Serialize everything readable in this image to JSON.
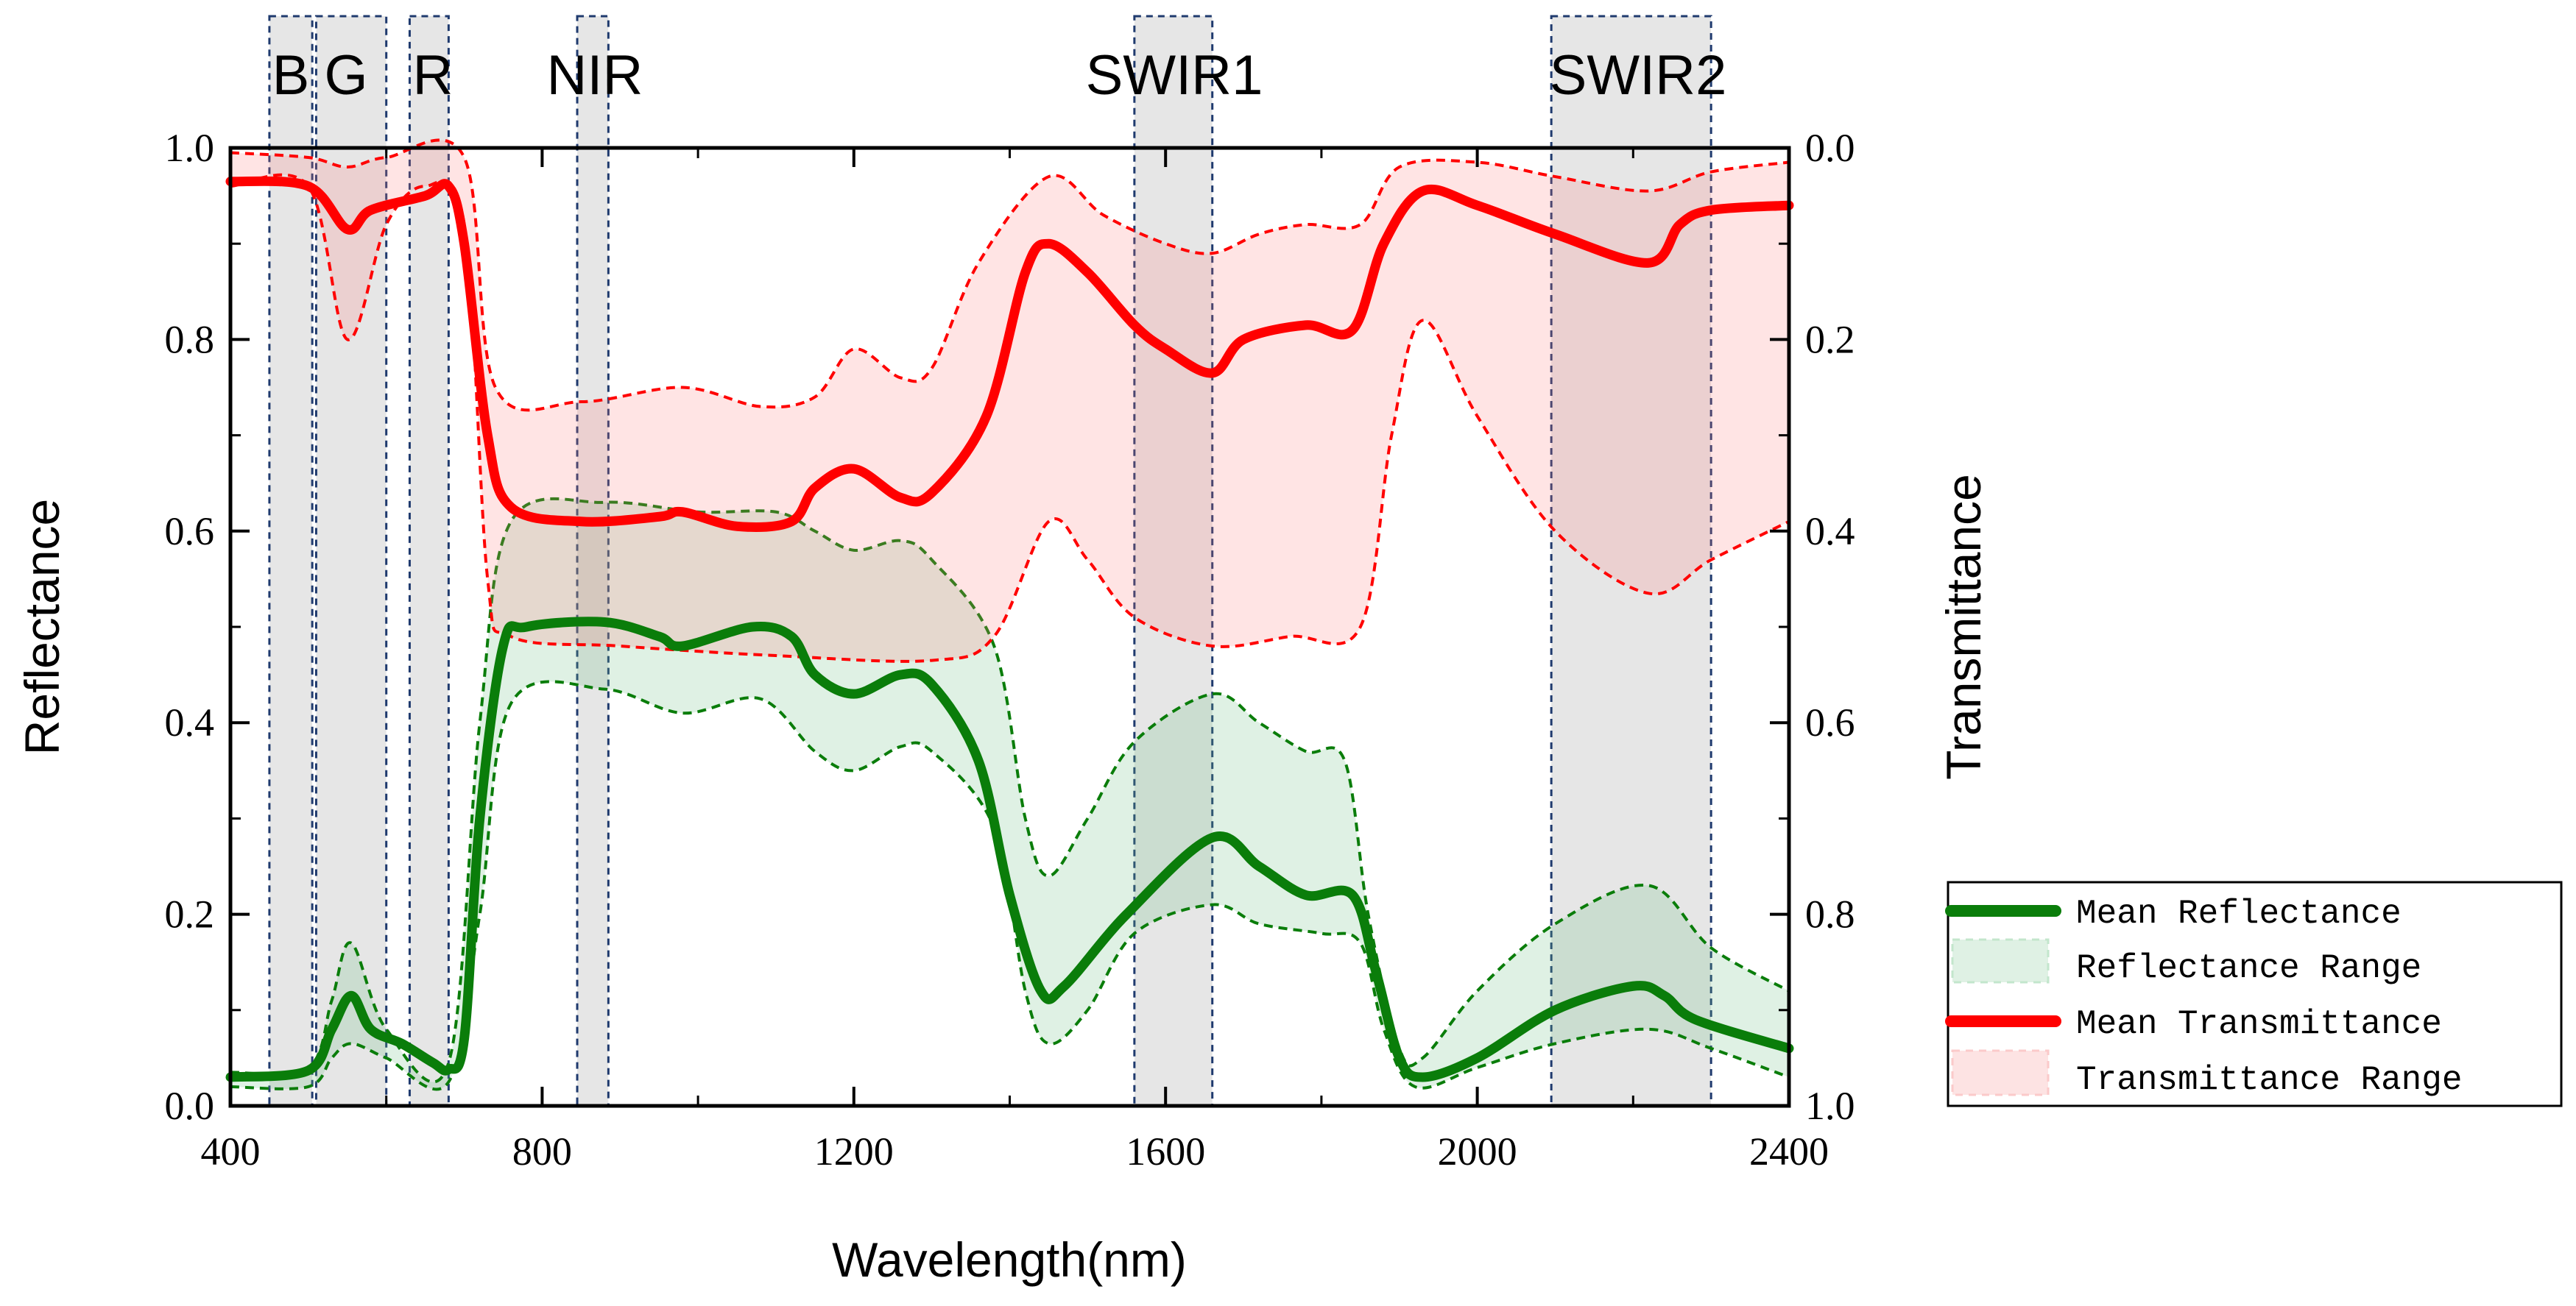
{
  "chart_data": {
    "type": "line",
    "xlabel": "Wavelength(nm)",
    "ylabel": "Reflectance",
    "y2label": "Transmittance",
    "xlim": [
      400,
      2400
    ],
    "ylim": [
      0,
      1
    ],
    "y2lim": [
      0,
      1
    ],
    "y2_inverted": true,
    "x_ticks": [
      "400",
      "800",
      "1200",
      "1600",
      "2000",
      "2400"
    ],
    "y_ticks": [
      "0.0",
      "0.2",
      "0.4",
      "0.6",
      "0.8",
      "1.0"
    ],
    "y2_ticks": [
      "0.0",
      "0.2",
      "0.4",
      "0.6",
      "0.8",
      "1.0"
    ],
    "grid": false,
    "legend_placement": "right",
    "bands": [
      {
        "label": "B",
        "range": [
          450,
          505
        ]
      },
      {
        "label": "G",
        "range": [
          510,
          600
        ]
      },
      {
        "label": "R",
        "range": [
          630,
          680
        ]
      },
      {
        "label": "NIR",
        "range": [
          845,
          885
        ]
      },
      {
        "label": "SWIR1",
        "range": [
          1560,
          1660
        ]
      },
      {
        "label": "SWIR2",
        "range": [
          2095,
          2300
        ]
      }
    ],
    "colors": {
      "reflectance": "#0a7d0a",
      "transmittance": "#ff0000",
      "band_fill": "#e6e6e6",
      "band_border": "#1f3a6e"
    },
    "series": [
      {
        "name": "Mean Reflectance",
        "axis": "left",
        "kind": "line",
        "points": [
          [
            400,
            0.03
          ],
          [
            500,
            0.037
          ],
          [
            530,
            0.08
          ],
          [
            555,
            0.115
          ],
          [
            580,
            0.08
          ],
          [
            620,
            0.065
          ],
          [
            660,
            0.045
          ],
          [
            680,
            0.038
          ],
          [
            700,
            0.07
          ],
          [
            720,
            0.3
          ],
          [
            750,
            0.48
          ],
          [
            780,
            0.5
          ],
          [
            880,
            0.505
          ],
          [
            950,
            0.49
          ],
          [
            980,
            0.48
          ],
          [
            1070,
            0.5
          ],
          [
            1120,
            0.49
          ],
          [
            1150,
            0.45
          ],
          [
            1200,
            0.43
          ],
          [
            1260,
            0.45
          ],
          [
            1300,
            0.44
          ],
          [
            1360,
            0.36
          ],
          [
            1400,
            0.22
          ],
          [
            1440,
            0.12
          ],
          [
            1470,
            0.125
          ],
          [
            1550,
            0.2
          ],
          [
            1660,
            0.28
          ],
          [
            1720,
            0.25
          ],
          [
            1780,
            0.22
          ],
          [
            1840,
            0.22
          ],
          [
            1870,
            0.14
          ],
          [
            1900,
            0.05
          ],
          [
            1930,
            0.03
          ],
          [
            2000,
            0.05
          ],
          [
            2100,
            0.1
          ],
          [
            2200,
            0.125
          ],
          [
            2240,
            0.115
          ],
          [
            2280,
            0.09
          ],
          [
            2400,
            0.06
          ]
        ]
      },
      {
        "name": "Reflectance Range",
        "axis": "left",
        "kind": "range",
        "upper": [
          [
            400,
            0.035
          ],
          [
            500,
            0.04
          ],
          [
            530,
            0.11
          ],
          [
            555,
            0.17
          ],
          [
            600,
            0.08
          ],
          [
            680,
            0.045
          ],
          [
            720,
            0.4
          ],
          [
            760,
            0.61
          ],
          [
            880,
            0.63
          ],
          [
            1000,
            0.62
          ],
          [
            1100,
            0.62
          ],
          [
            1150,
            0.6
          ],
          [
            1200,
            0.58
          ],
          [
            1260,
            0.59
          ],
          [
            1300,
            0.57
          ],
          [
            1380,
            0.48
          ],
          [
            1420,
            0.3
          ],
          [
            1450,
            0.24
          ],
          [
            1500,
            0.3
          ],
          [
            1560,
            0.38
          ],
          [
            1660,
            0.43
          ],
          [
            1720,
            0.4
          ],
          [
            1780,
            0.37
          ],
          [
            1830,
            0.36
          ],
          [
            1860,
            0.2
          ],
          [
            1900,
            0.06
          ],
          [
            1930,
            0.05
          ],
          [
            2000,
            0.12
          ],
          [
            2100,
            0.19
          ],
          [
            2220,
            0.23
          ],
          [
            2300,
            0.165
          ],
          [
            2400,
            0.12
          ]
        ],
        "lower": [
          [
            400,
            0.02
          ],
          [
            500,
            0.02
          ],
          [
            530,
            0.05
          ],
          [
            555,
            0.065
          ],
          [
            600,
            0.05
          ],
          [
            680,
            0.025
          ],
          [
            720,
            0.2
          ],
          [
            760,
            0.42
          ],
          [
            880,
            0.435
          ],
          [
            980,
            0.41
          ],
          [
            1080,
            0.425
          ],
          [
            1150,
            0.37
          ],
          [
            1200,
            0.35
          ],
          [
            1260,
            0.375
          ],
          [
            1300,
            0.37
          ],
          [
            1380,
            0.29
          ],
          [
            1420,
            0.12
          ],
          [
            1450,
            0.065
          ],
          [
            1500,
            0.1
          ],
          [
            1560,
            0.18
          ],
          [
            1660,
            0.21
          ],
          [
            1720,
            0.19
          ],
          [
            1800,
            0.18
          ],
          [
            1850,
            0.17
          ],
          [
            1880,
            0.08
          ],
          [
            1920,
            0.02
          ],
          [
            2000,
            0.04
          ],
          [
            2100,
            0.065
          ],
          [
            2220,
            0.08
          ],
          [
            2300,
            0.06
          ],
          [
            2400,
            0.03
          ]
        ]
      },
      {
        "name": "Mean Transmittance",
        "axis": "right",
        "kind": "line",
        "points": [
          [
            400,
            0.035
          ],
          [
            500,
            0.04
          ],
          [
            550,
            0.085
          ],
          [
            580,
            0.065
          ],
          [
            650,
            0.05
          ],
          [
            680,
            0.04
          ],
          [
            700,
            0.1
          ],
          [
            730,
            0.3
          ],
          [
            760,
            0.375
          ],
          [
            850,
            0.39
          ],
          [
            950,
            0.385
          ],
          [
            980,
            0.38
          ],
          [
            1050,
            0.395
          ],
          [
            1120,
            0.39
          ],
          [
            1150,
            0.355
          ],
          [
            1200,
            0.335
          ],
          [
            1260,
            0.365
          ],
          [
            1300,
            0.36
          ],
          [
            1370,
            0.28
          ],
          [
            1420,
            0.13
          ],
          [
            1450,
            0.1
          ],
          [
            1500,
            0.13
          ],
          [
            1560,
            0.185
          ],
          [
            1600,
            0.21
          ],
          [
            1660,
            0.235
          ],
          [
            1700,
            0.2
          ],
          [
            1780,
            0.185
          ],
          [
            1840,
            0.19
          ],
          [
            1880,
            0.1
          ],
          [
            1930,
            0.045
          ],
          [
            2000,
            0.06
          ],
          [
            2100,
            0.09
          ],
          [
            2220,
            0.12
          ],
          [
            2260,
            0.08
          ],
          [
            2300,
            0.065
          ],
          [
            2400,
            0.06
          ]
        ]
      },
      {
        "name": "Transmittance Range",
        "axis": "right",
        "kind": "range",
        "upper": [
          [
            400,
            0.005
          ],
          [
            500,
            0.01
          ],
          [
            550,
            0.02
          ],
          [
            600,
            0.01
          ],
          [
            700,
            0.01
          ],
          [
            740,
            0.25
          ],
          [
            850,
            0.265
          ],
          [
            980,
            0.25
          ],
          [
            1080,
            0.27
          ],
          [
            1150,
            0.26
          ],
          [
            1200,
            0.21
          ],
          [
            1260,
            0.24
          ],
          [
            1300,
            0.23
          ],
          [
            1360,
            0.12
          ],
          [
            1450,
            0.03
          ],
          [
            1520,
            0.07
          ],
          [
            1600,
            0.1
          ],
          [
            1660,
            0.11
          ],
          [
            1720,
            0.09
          ],
          [
            1780,
            0.08
          ],
          [
            1850,
            0.08
          ],
          [
            1900,
            0.02
          ],
          [
            2000,
            0.015
          ],
          [
            2100,
            0.03
          ],
          [
            2220,
            0.045
          ],
          [
            2300,
            0.025
          ],
          [
            2400,
            0.015
          ]
        ],
        "lower": [
          [
            400,
            0.04
          ],
          [
            500,
            0.04
          ],
          [
            550,
            0.2
          ],
          [
            600,
            0.08
          ],
          [
            650,
            0.04
          ],
          [
            700,
            0.08
          ],
          [
            730,
            0.45
          ],
          [
            760,
            0.51
          ],
          [
            900,
            0.52
          ],
          [
            1100,
            0.53
          ],
          [
            1300,
            0.535
          ],
          [
            1380,
            0.51
          ],
          [
            1450,
            0.39
          ],
          [
            1500,
            0.43
          ],
          [
            1560,
            0.49
          ],
          [
            1660,
            0.52
          ],
          [
            1760,
            0.51
          ],
          [
            1850,
            0.5
          ],
          [
            1890,
            0.3
          ],
          [
            1930,
            0.18
          ],
          [
            2000,
            0.28
          ],
          [
            2100,
            0.4
          ],
          [
            2220,
            0.465
          ],
          [
            2300,
            0.43
          ],
          [
            2400,
            0.39
          ]
        ]
      }
    ]
  }
}
